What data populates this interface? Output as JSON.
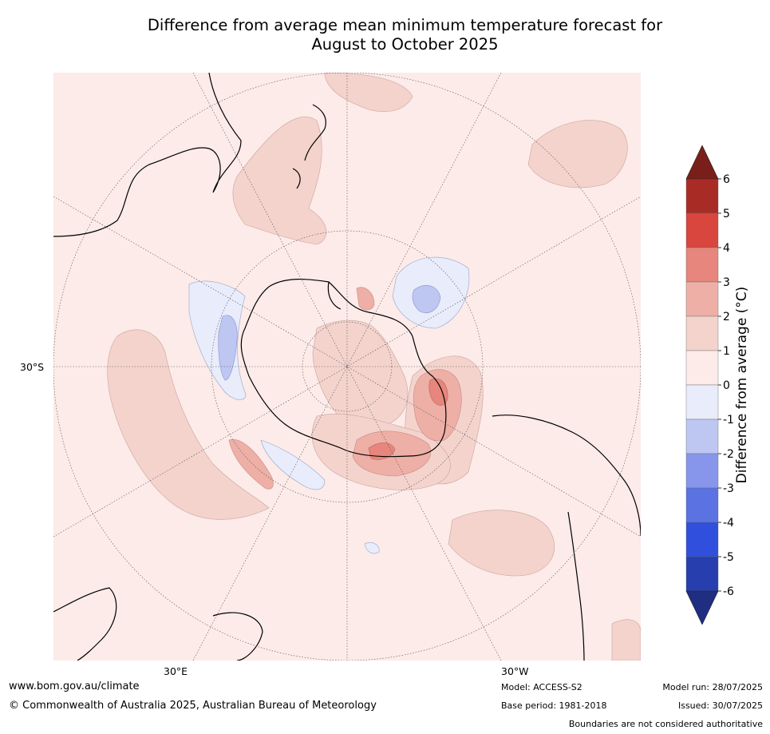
{
  "title": {
    "line1": "Difference from average mean minimum temperature forecast for",
    "line2": "August to October 2025"
  },
  "map": {
    "projection": "south-polar-stereographic",
    "lat_label": "30°S",
    "lon_labels": [
      "30°E",
      "30°W"
    ],
    "background_color": "#fcebe8",
    "regions": [
      {
        "name": "warm-anomaly",
        "range": "1 to 2"
      },
      {
        "name": "warm-anomaly",
        "range": "2 to 3"
      },
      {
        "name": "warm-anomaly",
        "range": "3 to 4"
      },
      {
        "name": "cool-anomaly",
        "range": "0 to -1"
      },
      {
        "name": "cool-anomaly",
        "range": "-1 to -2"
      }
    ]
  },
  "colorbar": {
    "title": "Difference from average (°C)",
    "ticks": [
      "6",
      "5",
      "4",
      "3",
      "2",
      "1",
      "0",
      "-1",
      "-2",
      "-3",
      "-4",
      "-5",
      "-6"
    ],
    "colors": [
      "#a92b25",
      "#d8463d",
      "#e6867c",
      "#edafa6",
      "#f4d3cd",
      "#fcebe8",
      "#e8ecfb",
      "#bec6f2",
      "#8796ea",
      "#5a72e2",
      "#2f4fdc",
      "#263eae"
    ],
    "over_color": "#7a1e1a",
    "under_color": "#1f2e80"
  },
  "footer": {
    "website": "www.bom.gov.au/climate",
    "copyright": "© Commonwealth of Australia 2025, Australian Bureau of Meteorology",
    "model": "Model: ACCESS-S2",
    "base_period": "Base period: 1981-2018",
    "model_run": "Model run: 28/07/2025",
    "issued": "Issued: 30/07/2025",
    "disclaimer": "Boundaries are not considered authoritative"
  }
}
